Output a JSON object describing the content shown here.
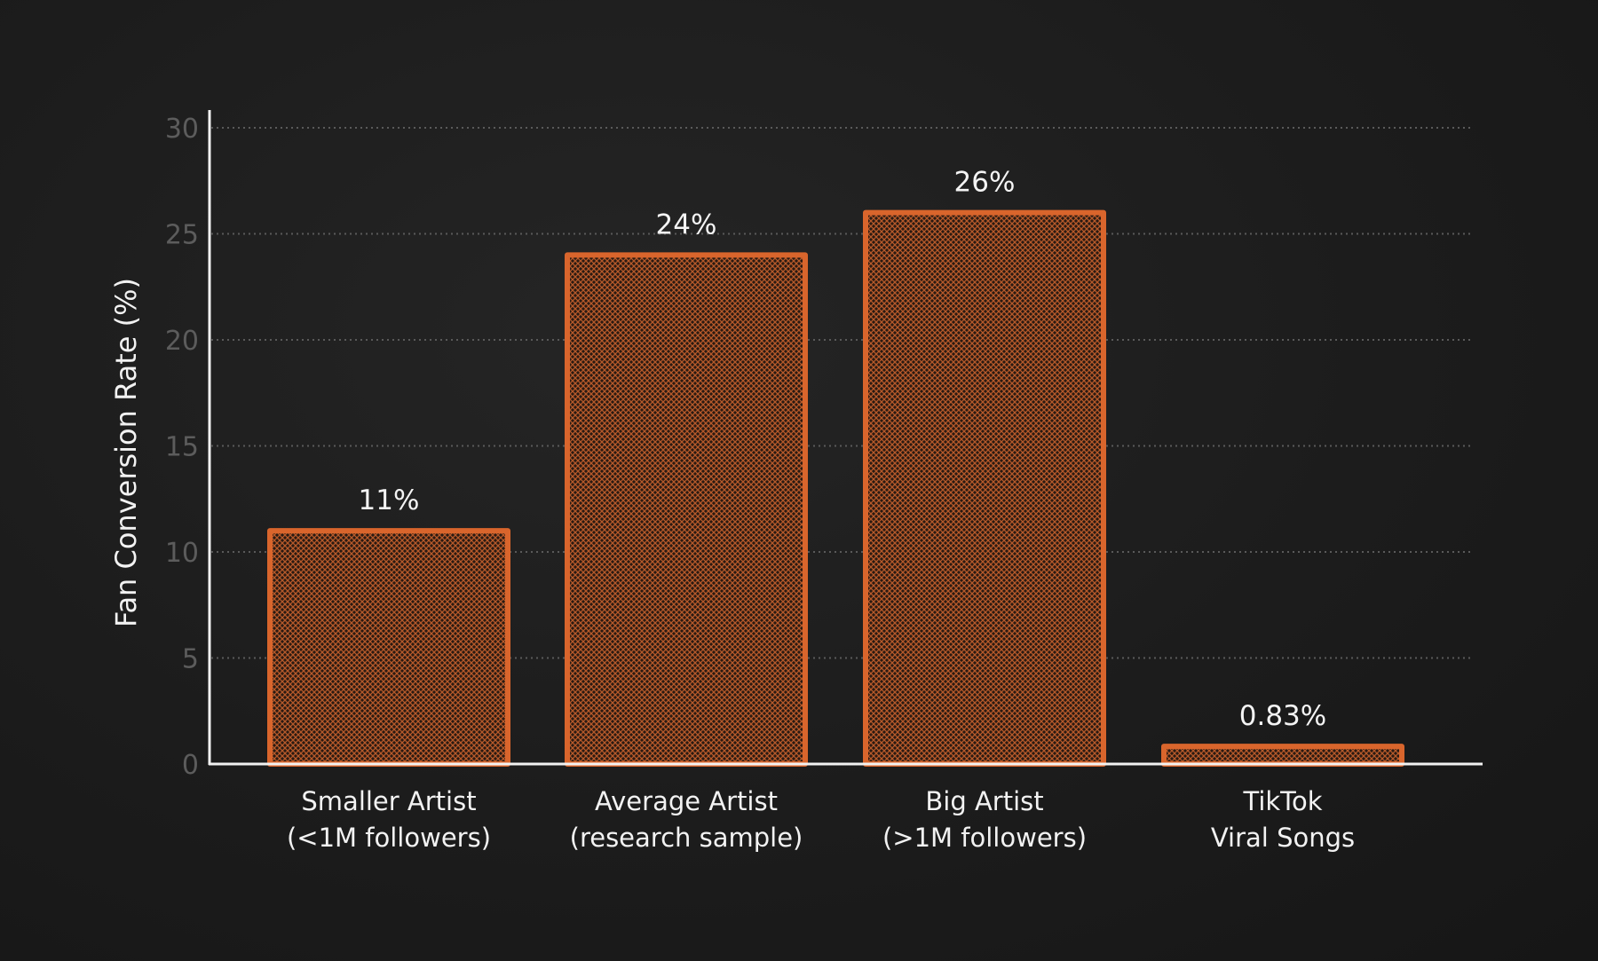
{
  "colors": {
    "bar_outline": "#d9652c",
    "bar_fill": "#6b3a22",
    "background": "#1b1b1b",
    "text": "#f2f2f2",
    "tick_text": "#5c5c5c",
    "grid": "#5a5a5a"
  },
  "chart_data": {
    "type": "bar",
    "title": "",
    "xlabel": "",
    "ylabel": "Fan Conversion Rate (%)",
    "ylim": [
      0,
      30
    ],
    "yticks": [
      0,
      5,
      10,
      15,
      20,
      25,
      30
    ],
    "grid": "horizontal dotted",
    "categories": [
      [
        "Smaller Artist",
        "(<1M followers)"
      ],
      [
        "Average Artist",
        "(research sample)"
      ],
      [
        "Big Artist",
        "(>1M followers)"
      ],
      [
        "TikTok",
        "Viral Songs"
      ]
    ],
    "values": [
      11,
      24,
      26,
      0.83
    ],
    "data_labels": [
      "11%",
      "24%",
      "26%",
      "0.83%"
    ]
  }
}
